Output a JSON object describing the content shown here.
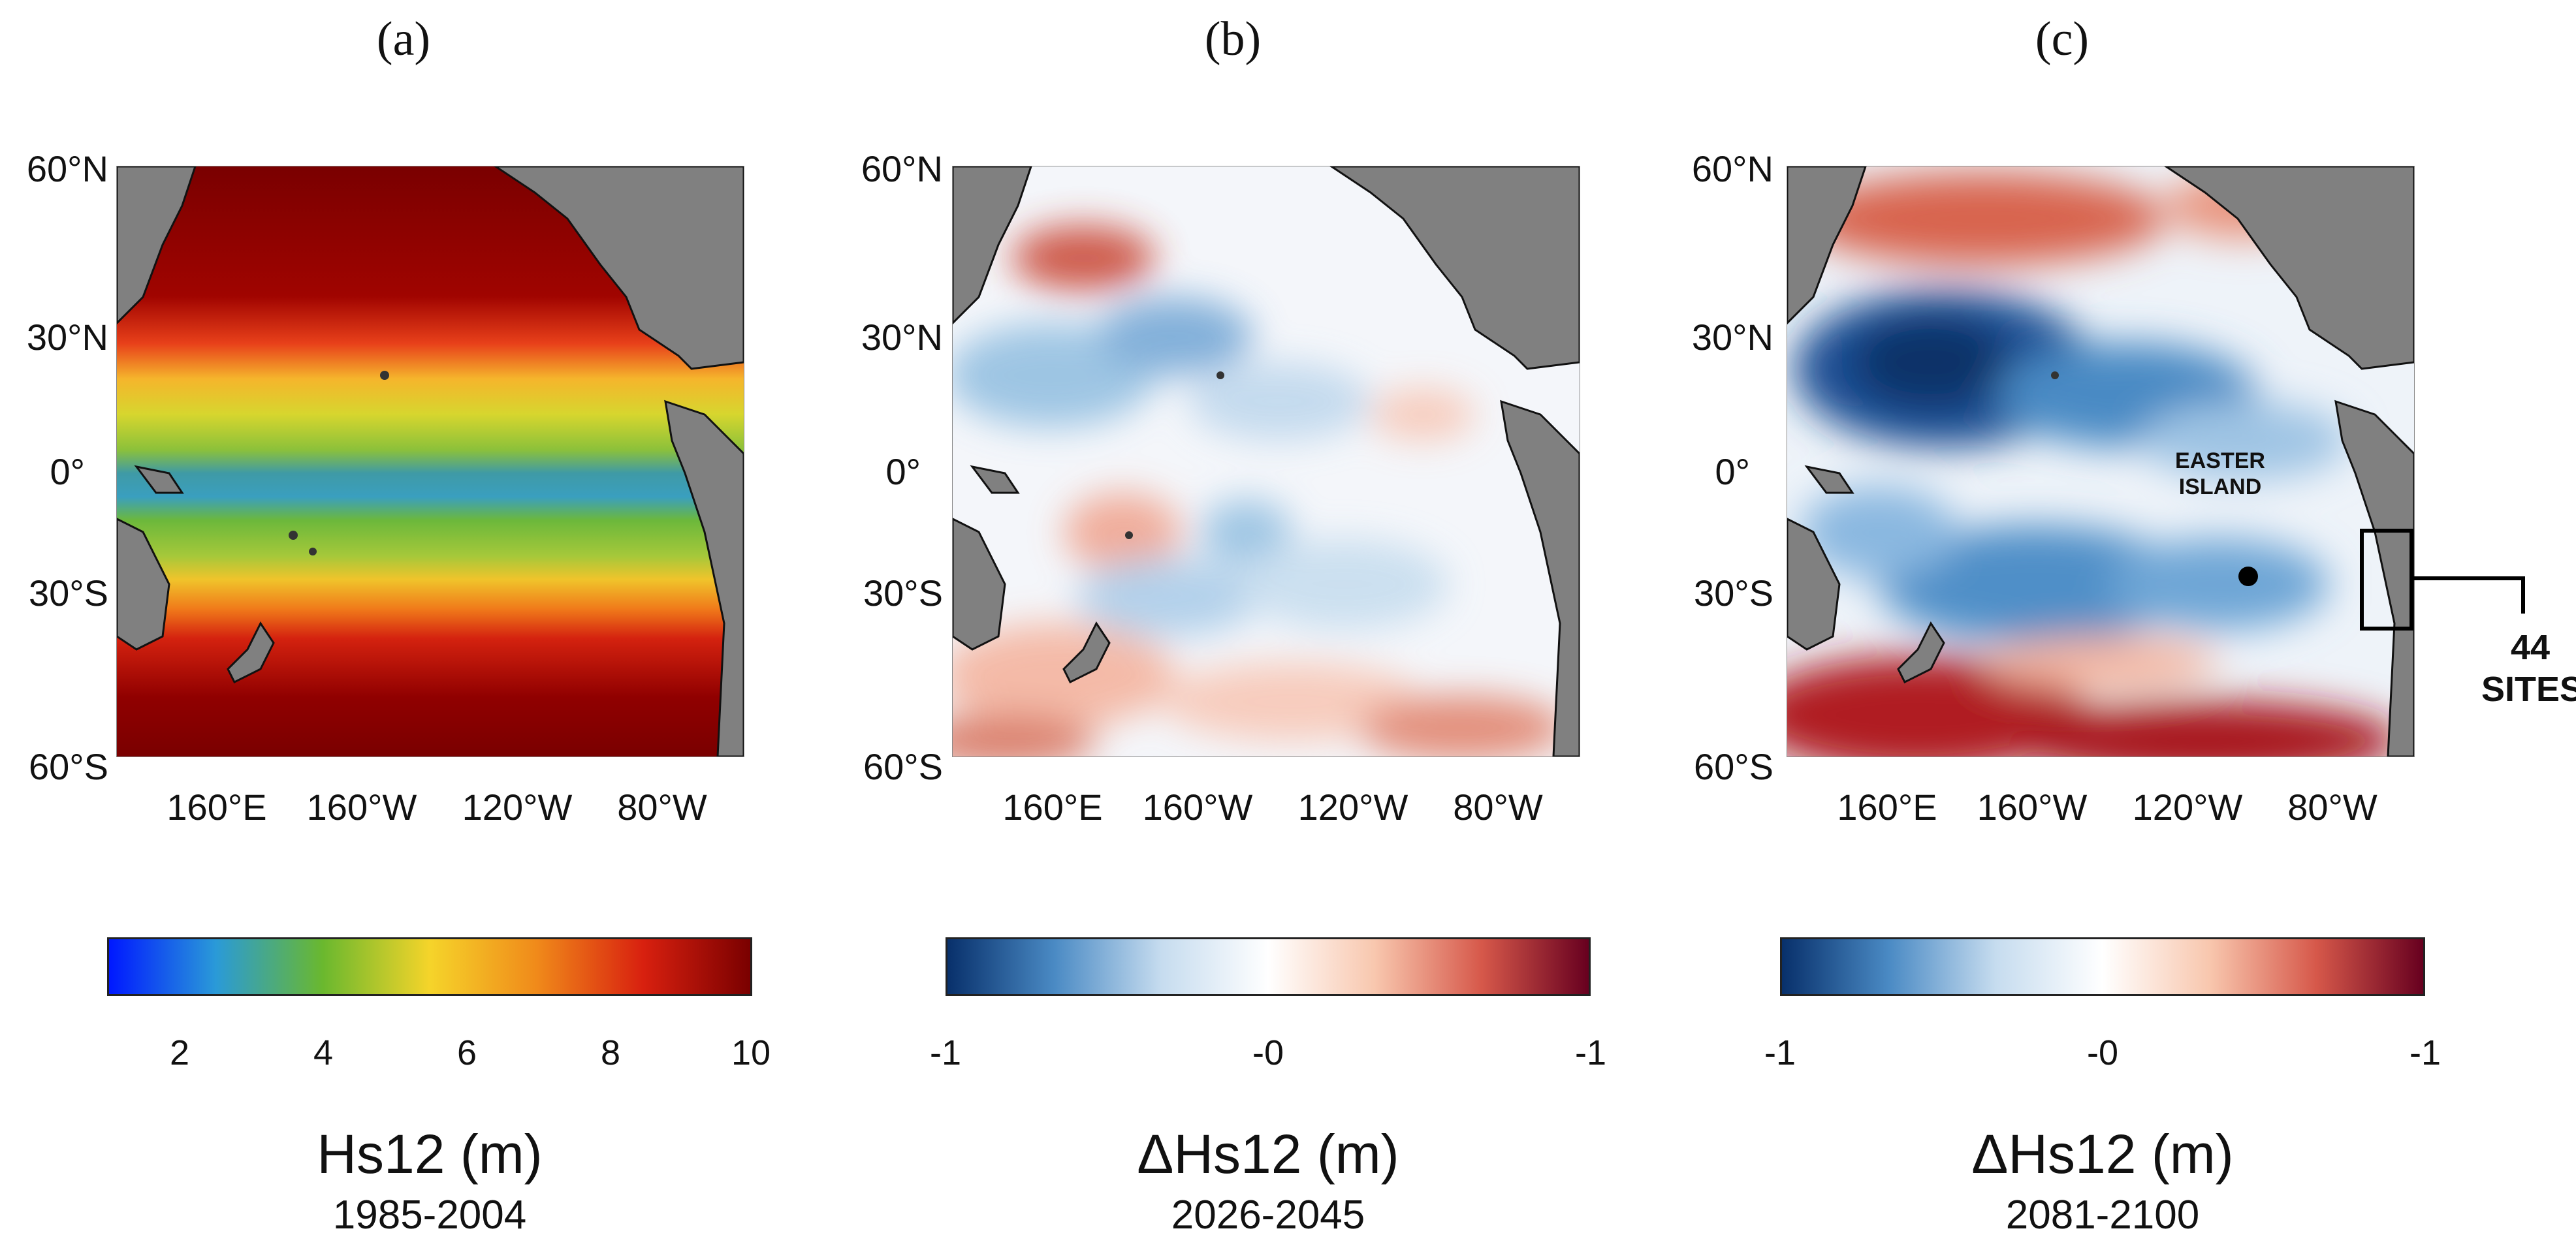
{
  "panels": [
    {
      "letter": "(a)",
      "lat_labels": [
        "60°N",
        "30°N",
        "0°",
        "30°S",
        "60°S"
      ],
      "lon_labels": [
        "160°E",
        "160°W",
        "120°W",
        "80°W"
      ],
      "colorbar": {
        "ticks": [
          "2",
          "4",
          "6",
          "8",
          "10"
        ],
        "title": "Hs12 (m)",
        "years": "1985-2004",
        "colors": [
          "#0018ff",
          "#2a9ad8",
          "#6ab82e",
          "#f5d42a",
          "#f08a1a",
          "#d8200f",
          "#7a0000"
        ]
      }
    },
    {
      "letter": "(b)",
      "lat_labels": [
        "60°N",
        "30°N",
        "0°",
        "30°S",
        "60°S"
      ],
      "lon_labels": [
        "160°E",
        "160°W",
        "120°W",
        "80°W"
      ],
      "colorbar": {
        "ticks": [
          "-1",
          "-0",
          "-1"
        ],
        "title": "ΔHs12 (m)",
        "years": "2026-2045",
        "colors": [
          "#08306b",
          "#4a8ac4",
          "#c6dcef",
          "#ffffff",
          "#f8c7ae",
          "#d6584a",
          "#67001f"
        ]
      }
    },
    {
      "letter": "(c)",
      "lat_labels": [
        "60°N",
        "30°N",
        "0°",
        "30°S",
        "60°S"
      ],
      "lon_labels": [
        "160°E",
        "160°W",
        "120°W",
        "80°W"
      ],
      "colorbar": {
        "ticks": [
          "-1",
          "-0",
          "-1"
        ],
        "title": "ΔHs12 (m)",
        "years": "2081-2100",
        "colors": [
          "#08306b",
          "#4a8ac4",
          "#c6dcef",
          "#ffffff",
          "#f8c7ae",
          "#d6584a",
          "#67001f"
        ]
      }
    }
  ],
  "annotations": {
    "easter_island": [
      "EASTER",
      "ISLAND"
    ],
    "sites": [
      "44",
      "SITES"
    ]
  },
  "colors": {
    "land": "#808080",
    "coast": "#111111"
  }
}
